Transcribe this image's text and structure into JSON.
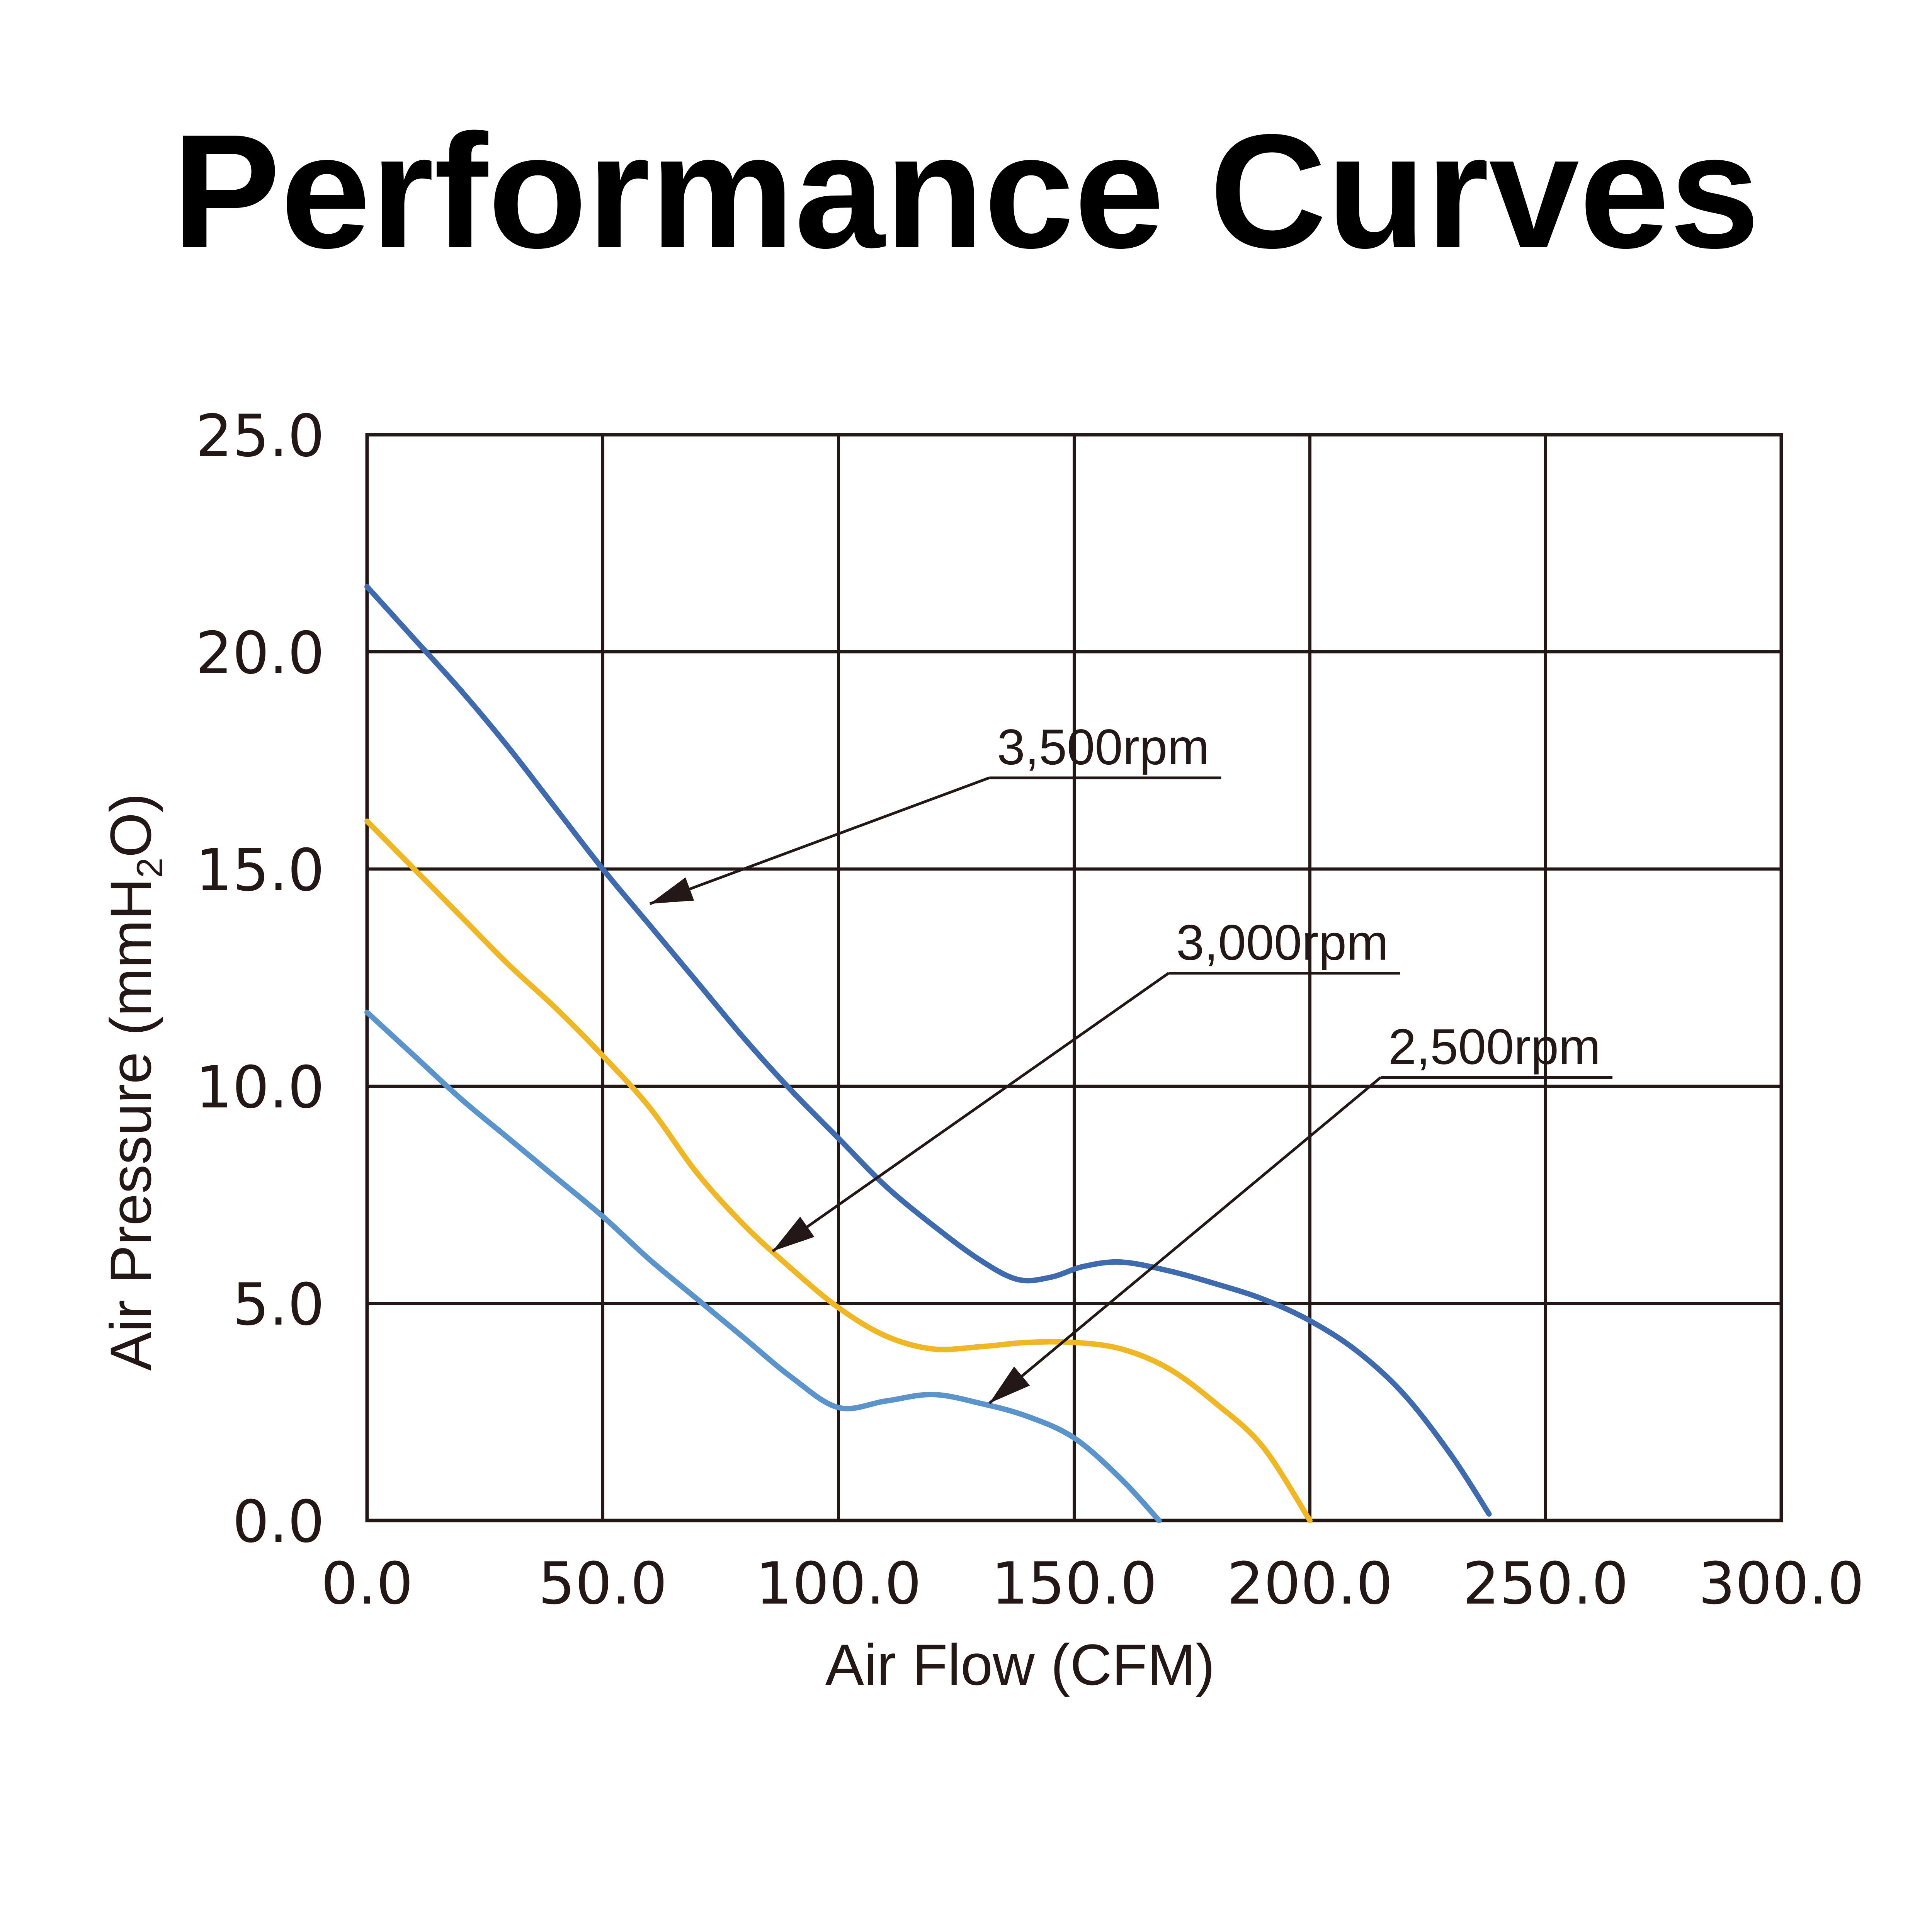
{
  "chart_data": {
    "type": "line",
    "title": "Performance Curves",
    "xlabel": "Air Flow (CFM)",
    "ylabel": {
      "prefix": "Air Pressure (mmH",
      "subscript": "2",
      "suffix": "O)"
    },
    "xlim": [
      0,
      300
    ],
    "ylim": [
      0,
      25
    ],
    "x_ticks": [
      0,
      50,
      100,
      150,
      200,
      250,
      300
    ],
    "y_ticks": [
      0,
      5,
      10,
      15,
      20,
      25
    ],
    "x_tick_labels": [
      "0.0",
      "50.0",
      "100.0",
      "150.0",
      "200.0",
      "250.0",
      "300.0"
    ],
    "y_tick_labels": [
      "0.0",
      "5.0",
      "10.0",
      "15.0",
      "20.0",
      "25.0"
    ],
    "grid": true,
    "series": [
      {
        "name": "3,500rpm",
        "color": "#3e6bb0",
        "points": [
          [
            0,
            21.5
          ],
          [
            10,
            20.3
          ],
          [
            20,
            19.1
          ],
          [
            30,
            17.8
          ],
          [
            40,
            16.4
          ],
          [
            50,
            15.0
          ],
          [
            60,
            13.7
          ],
          [
            70,
            12.4
          ],
          [
            80,
            11.1
          ],
          [
            90,
            9.9
          ],
          [
            100,
            8.8
          ],
          [
            110,
            7.7
          ],
          [
            120,
            6.8
          ],
          [
            130,
            6.0
          ],
          [
            138,
            5.55
          ],
          [
            145,
            5.6
          ],
          [
            152,
            5.85
          ],
          [
            160,
            5.95
          ],
          [
            170,
            5.75
          ],
          [
            180,
            5.45
          ],
          [
            190,
            5.1
          ],
          [
            200,
            4.6
          ],
          [
            210,
            3.9
          ],
          [
            220,
            2.9
          ],
          [
            230,
            1.5
          ],
          [
            238,
            0.15
          ]
        ],
        "label_anchor": [
          132,
          17.1
        ],
        "arrow_target": [
          60,
          14.2
        ]
      },
      {
        "name": "3,000rpm",
        "color": "#f0b722",
        "points": [
          [
            0,
            16.1
          ],
          [
            10,
            15.0
          ],
          [
            20,
            13.9
          ],
          [
            30,
            12.8
          ],
          [
            40,
            11.8
          ],
          [
            50,
            10.7
          ],
          [
            60,
            9.5
          ],
          [
            70,
            8.0
          ],
          [
            80,
            6.8
          ],
          [
            90,
            5.8
          ],
          [
            100,
            4.9
          ],
          [
            110,
            4.25
          ],
          [
            120,
            3.95
          ],
          [
            130,
            4.0
          ],
          [
            140,
            4.1
          ],
          [
            150,
            4.1
          ],
          [
            160,
            3.95
          ],
          [
            170,
            3.5
          ],
          [
            180,
            2.7
          ],
          [
            190,
            1.7
          ],
          [
            200,
            0.0
          ]
        ],
        "label_anchor": [
          170,
          12.6
        ],
        "arrow_target": [
          86,
          6.2
        ]
      },
      {
        "name": "2,500rpm",
        "color": "#5a94cc",
        "points": [
          [
            0,
            11.7
          ],
          [
            10,
            10.7
          ],
          [
            20,
            9.7
          ],
          [
            30,
            8.8
          ],
          [
            40,
            7.9
          ],
          [
            50,
            7.0
          ],
          [
            60,
            6.0
          ],
          [
            70,
            5.1
          ],
          [
            80,
            4.2
          ],
          [
            90,
            3.3
          ],
          [
            100,
            2.6
          ],
          [
            110,
            2.75
          ],
          [
            120,
            2.9
          ],
          [
            130,
            2.7
          ],
          [
            140,
            2.4
          ],
          [
            150,
            1.9
          ],
          [
            160,
            0.95
          ],
          [
            168,
            0.0
          ]
        ],
        "label_anchor": [
          215,
          10.2
        ],
        "arrow_target": [
          132,
          2.7
        ]
      }
    ]
  }
}
